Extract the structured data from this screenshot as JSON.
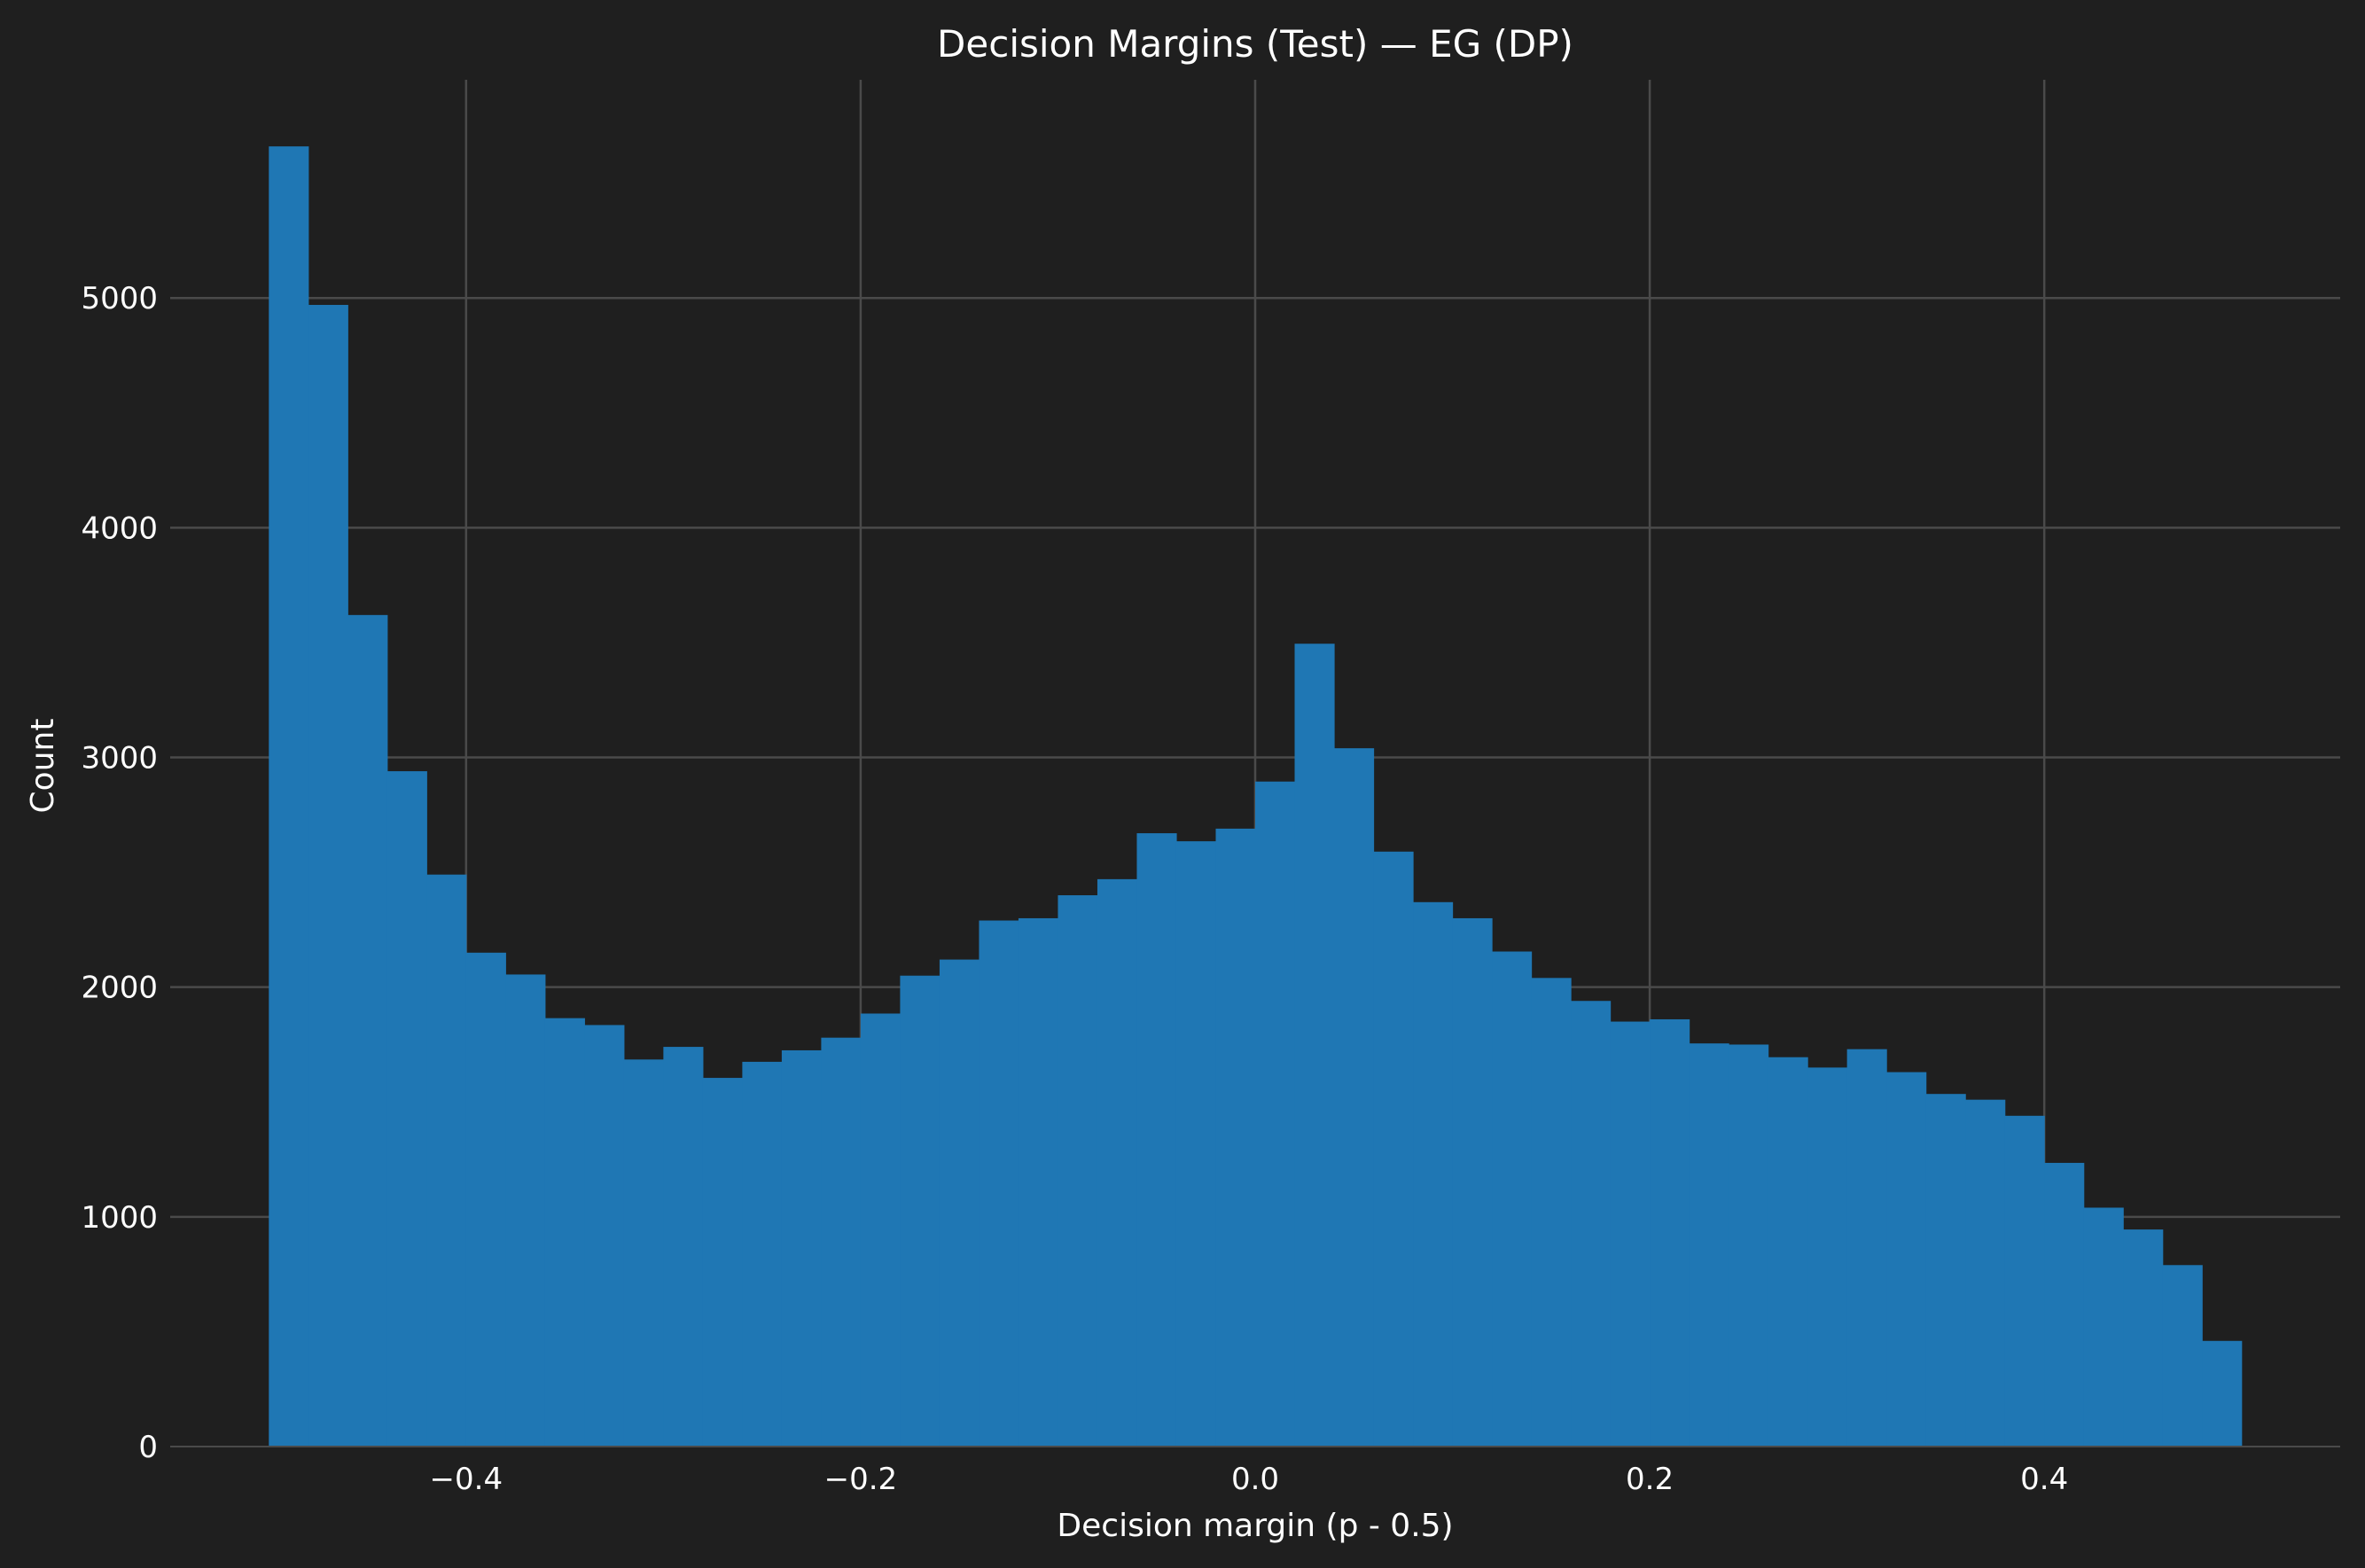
{
  "chart_data": {
    "type": "bar",
    "title": "Decision Margins (Test) — EG (DP)",
    "xlabel": "Decision margin (p - 0.5)",
    "ylabel": "Count",
    "xlim": [
      -0.55,
      0.55
    ],
    "ylim": [
      0,
      5950
    ],
    "bin_start": -0.5,
    "bin_width": 0.02,
    "values": [
      5660,
      4970,
      3620,
      2940,
      2490,
      2150,
      2055,
      1865,
      1835,
      1685,
      1740,
      1605,
      1675,
      1725,
      1780,
      1885,
      2050,
      2120,
      2290,
      2300,
      2400,
      2470,
      2670,
      2635,
      2690,
      2895,
      3495,
      3040,
      2590,
      2370,
      2300,
      2155,
      2040,
      1940,
      1850,
      1860,
      1755,
      1750,
      1695,
      1650,
      1730,
      1630,
      1535,
      1510,
      1440,
      1235,
      1040,
      945,
      790,
      460
    ],
    "x_ticks": [
      {
        "value": -0.4,
        "label": "−0.4"
      },
      {
        "value": -0.2,
        "label": "−0.2"
      },
      {
        "value": 0.0,
        "label": "0.0"
      },
      {
        "value": 0.2,
        "label": "0.2"
      },
      {
        "value": 0.4,
        "label": "0.4"
      }
    ],
    "y_ticks": [
      {
        "value": 0,
        "label": "0"
      },
      {
        "value": 1000,
        "label": "1000"
      },
      {
        "value": 2000,
        "label": "2000"
      },
      {
        "value": 3000,
        "label": "3000"
      },
      {
        "value": 4000,
        "label": "4000"
      },
      {
        "value": 5000,
        "label": "5000"
      }
    ],
    "grid": true,
    "colors": {
      "background": "#1f1f1f",
      "bar": "#1f77b4",
      "grid": "#4a4a4a",
      "text": "#ffffff"
    }
  }
}
